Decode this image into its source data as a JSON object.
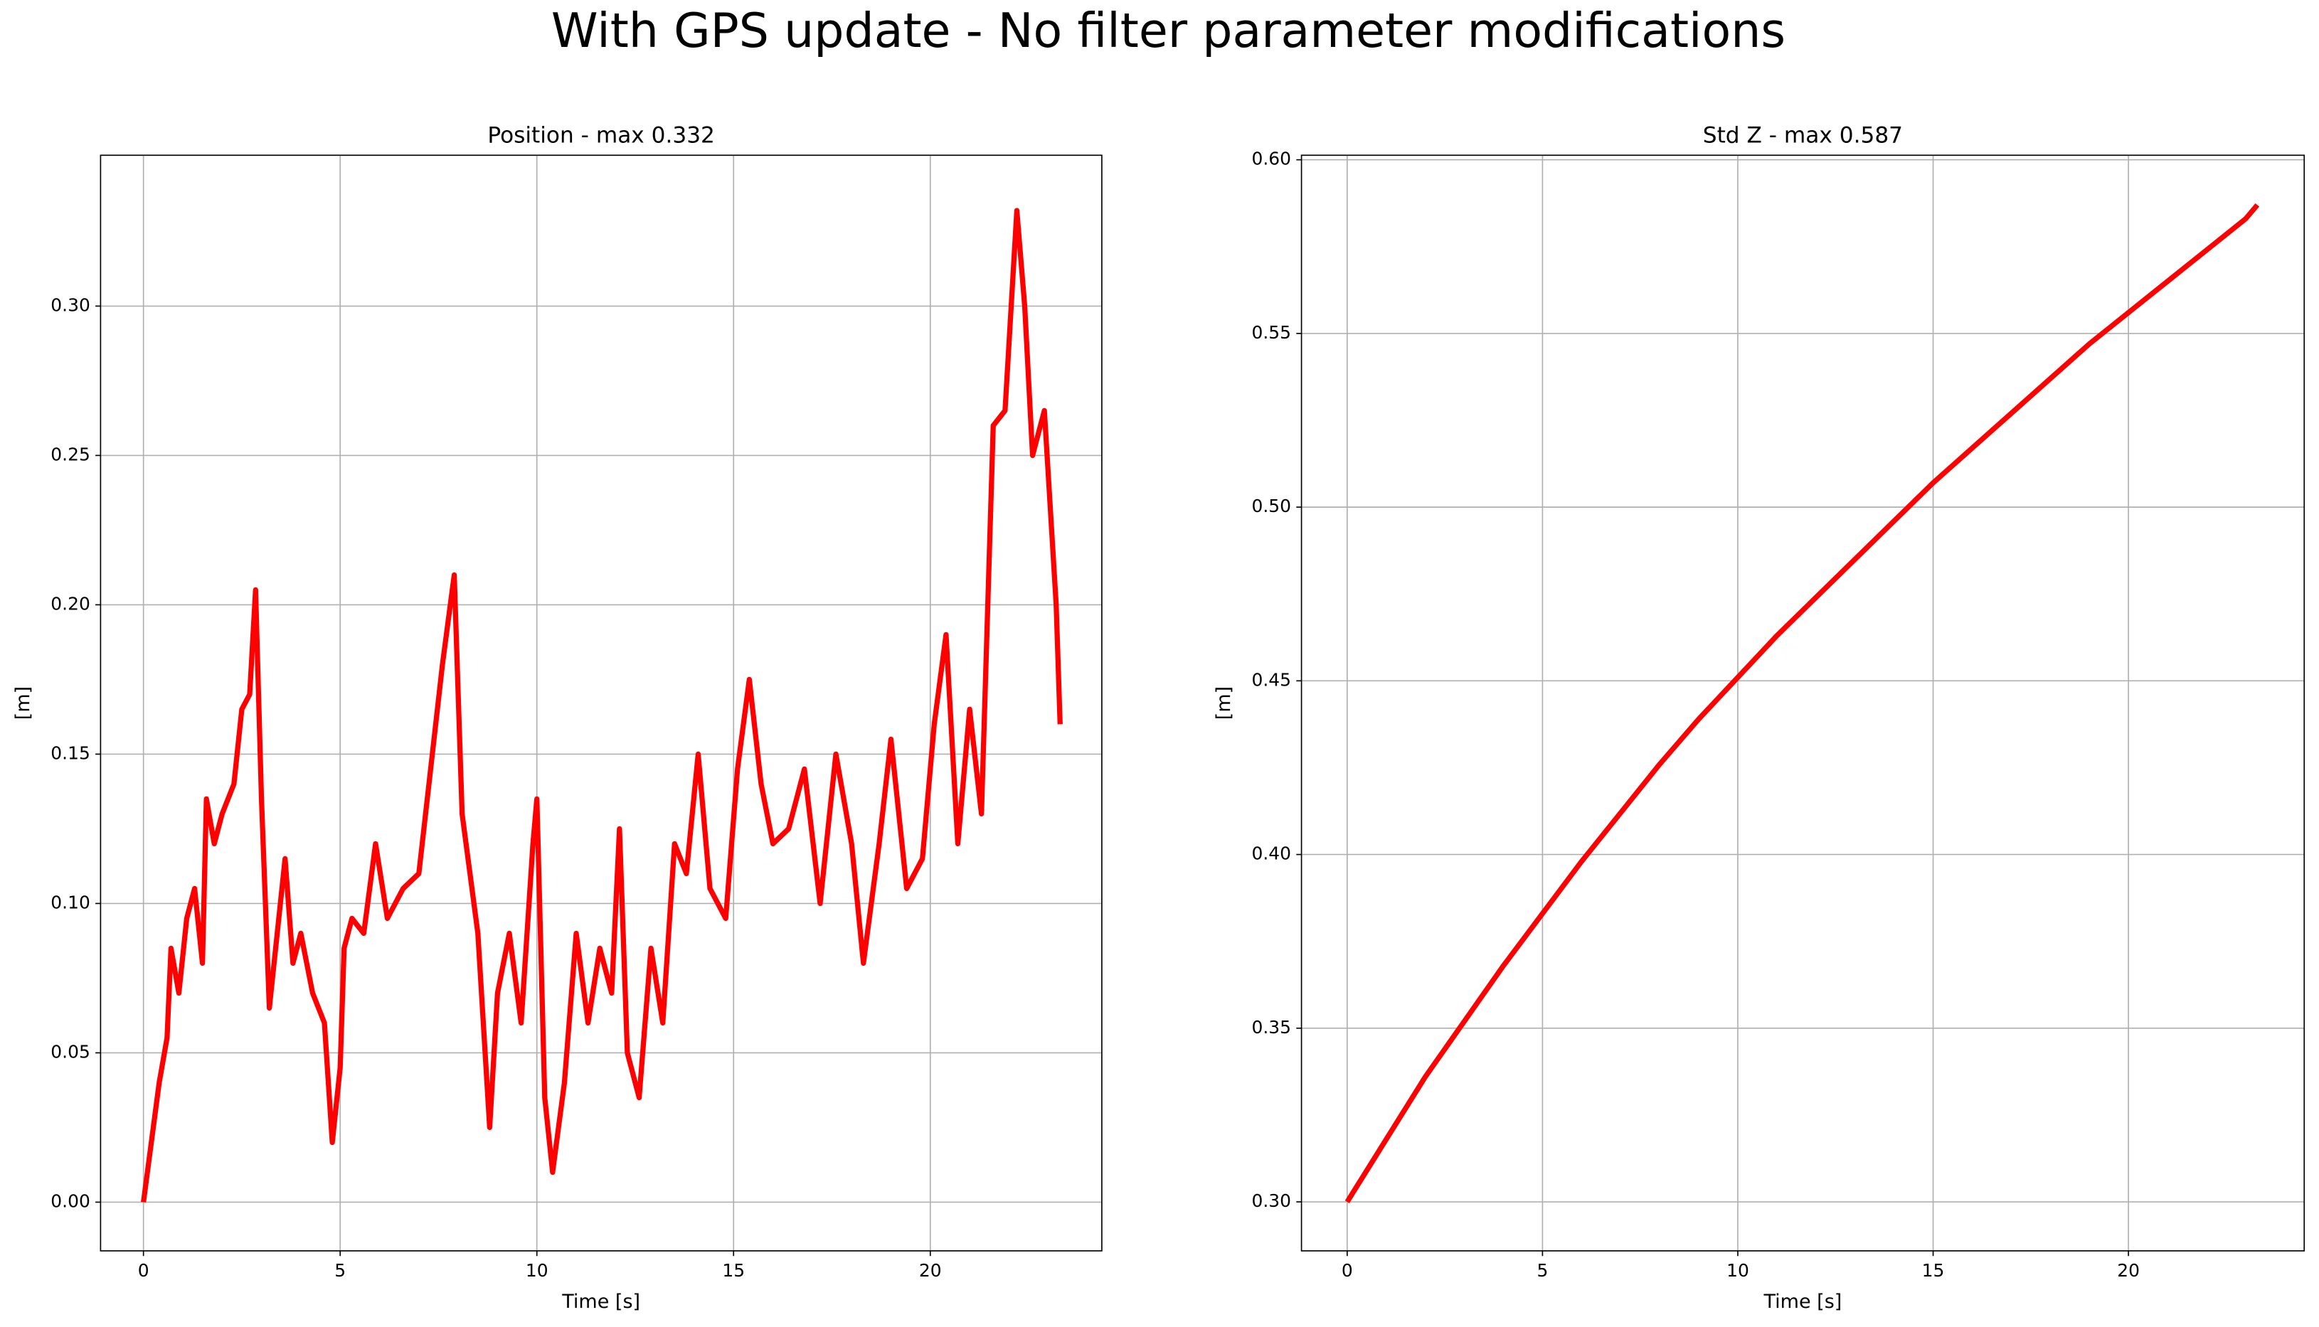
{
  "title": "With GPS update - No filter parameter modifications",
  "chart_data": [
    {
      "type": "line",
      "title": "Position - max 0.332",
      "xlabel": "Time [s]",
      "ylabel": "[m]",
      "color": "#ff0000",
      "grid": true,
      "xlim": [
        -1.09,
        24.36
      ],
      "xticks": [
        0,
        5,
        10,
        15,
        20
      ],
      "ylim": [
        -0.0163,
        0.3505
      ],
      "yticks": [
        {
          "value": 0,
          "label": "0.00"
        },
        0.05,
        {
          "value": 0.1,
          "label": "0.10"
        },
        0.15,
        {
          "value": 0.2,
          "label": "0.20"
        },
        0.25,
        {
          "value": 0.3,
          "label": "0.30"
        }
      ],
      "x": [
        0,
        0.2,
        0.4,
        0.6,
        0.7,
        0.9,
        1.1,
        1.3,
        1.5,
        1.6,
        1.8,
        2.0,
        2.3,
        2.5,
        2.7,
        2.85,
        3.0,
        3.1,
        3.2,
        3.4,
        3.6,
        3.8,
        4.0,
        4.3,
        4.6,
        4.8,
        5.0,
        5.1,
        5.3,
        5.6,
        5.9,
        6.2,
        6.6,
        7.0,
        7.3,
        7.6,
        7.7,
        7.9,
        8.1,
        8.3,
        8.5,
        8.8,
        9.0,
        9.3,
        9.6,
        9.9,
        10.0,
        10.2,
        10.4,
        10.7,
        11.0,
        11.3,
        11.6,
        11.9,
        12.1,
        12.3,
        12.6,
        12.9,
        13.2,
        13.5,
        13.8,
        14.1,
        14.4,
        14.8,
        15.1,
        15.4,
        15.7,
        16.0,
        16.4,
        16.8,
        17.2,
        17.6,
        18.0,
        18.3,
        18.7,
        19.0,
        19.4,
        19.8,
        20.1,
        20.4,
        20.7,
        21.0,
        21.3,
        21.6,
        21.9,
        22.2,
        22.4,
        22.6,
        22.9,
        23.2,
        23.3
      ],
      "values": [
        0,
        0.02,
        0.04,
        0.055,
        0.085,
        0.07,
        0.095,
        0.105,
        0.08,
        0.135,
        0.12,
        0.13,
        0.14,
        0.165,
        0.17,
        0.205,
        0.135,
        0.1,
        0.065,
        0.09,
        0.115,
        0.08,
        0.09,
        0.07,
        0.06,
        0.02,
        0.045,
        0.085,
        0.095,
        0.09,
        0.12,
        0.095,
        0.105,
        0.11,
        0.145,
        0.18,
        0.19,
        0.21,
        0.13,
        0.11,
        0.09,
        0.025,
        0.07,
        0.09,
        0.06,
        0.12,
        0.135,
        0.035,
        0.01,
        0.04,
        0.09,
        0.06,
        0.085,
        0.07,
        0.125,
        0.05,
        0.035,
        0.085,
        0.06,
        0.12,
        0.11,
        0.15,
        0.105,
        0.095,
        0.145,
        0.175,
        0.14,
        0.12,
        0.125,
        0.145,
        0.1,
        0.15,
        0.12,
        0.08,
        0.12,
        0.155,
        0.105,
        0.115,
        0.16,
        0.19,
        0.12,
        0.165,
        0.13,
        0.26,
        0.265,
        0.332,
        0.3,
        0.25,
        0.265,
        0.2,
        0.16
      ]
    },
    {
      "type": "line",
      "title": "Std Z - max 0.587",
      "xlabel": "Time [s]",
      "ylabel": "[m]",
      "color": "#ff0000",
      "grid": true,
      "xlim": [
        -1.17,
        24.5
      ],
      "xticks": [
        0,
        5,
        10,
        15,
        20
      ],
      "ylim": [
        0.2859,
        0.6013
      ],
      "yticks": [
        {
          "value": 0.3,
          "label": "0.30"
        },
        0.35,
        {
          "value": 0.4,
          "label": "0.40"
        },
        0.45,
        {
          "value": 0.5,
          "label": "0.50"
        },
        0.55,
        {
          "value": 0.6,
          "label": "0.60"
        }
      ],
      "x": [
        0,
        1,
        2,
        3,
        4,
        5,
        6,
        7,
        8,
        9,
        10,
        11,
        12,
        13,
        14,
        15,
        16,
        17,
        18,
        19,
        20,
        21,
        22,
        23,
        23.3
      ],
      "values": [
        0.3,
        0.318,
        0.336,
        0.352,
        0.368,
        0.383,
        0.398,
        0.412,
        0.426,
        0.439,
        0.451,
        0.463,
        0.474,
        0.485,
        0.496,
        0.507,
        0.517,
        0.527,
        0.537,
        0.547,
        0.556,
        0.565,
        0.574,
        0.583,
        0.587
      ]
    }
  ]
}
